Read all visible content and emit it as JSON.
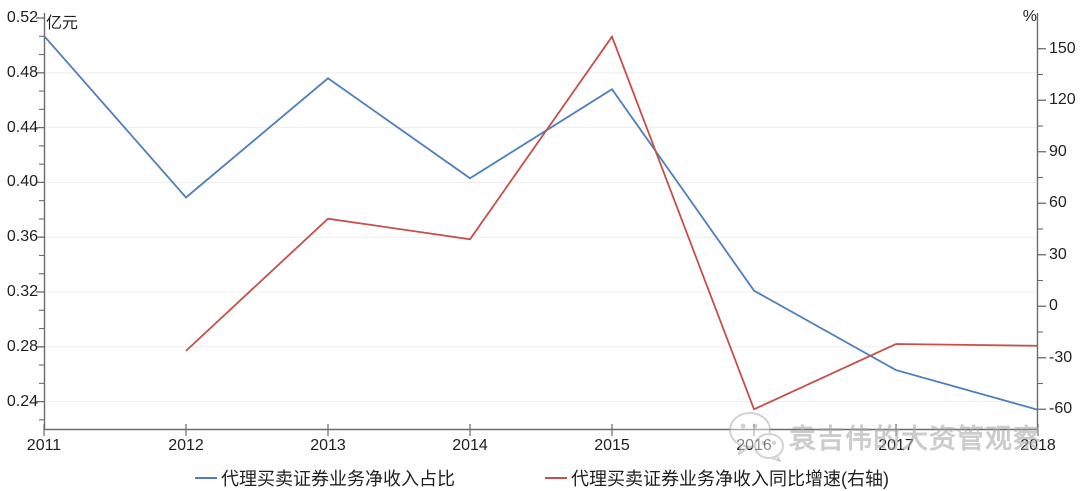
{
  "chart_data": {
    "type": "line",
    "x": [
      "2011",
      "2012",
      "2013",
      "2014",
      "2015",
      "2016",
      "2017",
      "2018"
    ],
    "series": [
      {
        "name": "代理买卖证券业务净收入占比",
        "axis": "left",
        "color": "#4d7ebd",
        "values": [
          0.507,
          0.389,
          0.476,
          0.403,
          0.468,
          0.321,
          0.263,
          0.234
        ]
      },
      {
        "name": "代理买卖证券业务净收入同比增速(右轴)",
        "axis": "right",
        "color": "#c5504b",
        "values": [
          null,
          -26,
          51,
          39,
          157,
          -60,
          -22,
          -23
        ]
      }
    ],
    "left_axis": {
      "unit": "亿元",
      "tick_labels": [
        "0.52",
        "0.48",
        "0.44",
        "0.40",
        "0.36",
        "0.32",
        "0.28",
        "0.24"
      ],
      "tick_values": [
        0.52,
        0.48,
        0.44,
        0.4,
        0.36,
        0.32,
        0.28,
        0.24
      ],
      "range": [
        0.22,
        0.52
      ],
      "minor_step": 0.0133333
    },
    "right_axis": {
      "unit": "%",
      "tick_labels": [
        "150",
        "120",
        "90",
        "60",
        "30",
        "0",
        "-30",
        "-60"
      ],
      "tick_values": [
        150,
        120,
        90,
        60,
        30,
        0,
        -30,
        -60
      ],
      "range": [
        -71.5,
        167.9
      ],
      "minor_step": 15
    },
    "grid": "horizontal-light",
    "legend_position": "bottom"
  },
  "legend": {
    "items": [
      {
        "label": "代理买卖证券业务净收入占比",
        "color": "#4d7ebd"
      },
      {
        "label": "代理买卖证券业务净收入同比增速(右轴)",
        "color": "#c5504b"
      }
    ]
  },
  "watermark": {
    "text": "袁吉伟的大资管观察"
  },
  "colors": {
    "axis": "#6b6b6b",
    "tick": "#6b6b6b",
    "label": "#1f1f1f",
    "grid": "#ededed",
    "watermark": "#a9a9a9",
    "background": "#ffffff"
  }
}
